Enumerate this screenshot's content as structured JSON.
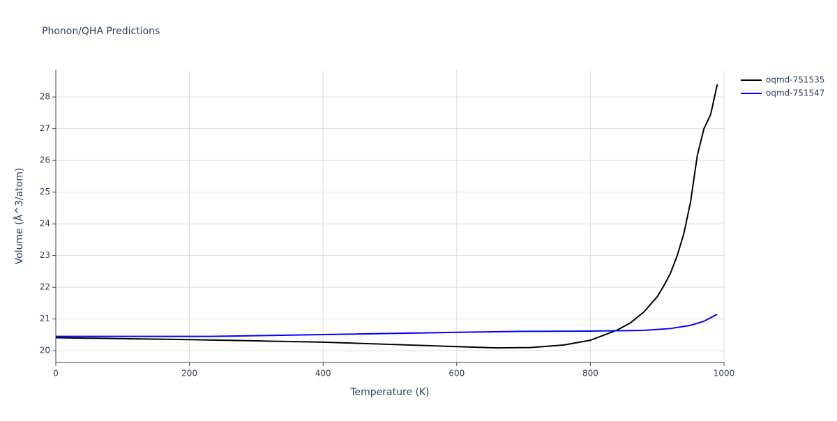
{
  "chart_data": {
    "type": "line",
    "title": "Phonon/QHA Predictions",
    "x_label": "Temperature (K)",
    "y_label": "Volume (Å^3/atom)",
    "series": [
      {
        "name": "oqmd-751535",
        "color": "#000000",
        "x": [
          0,
          100,
          200,
          300,
          400,
          500,
          600,
          660,
          710,
          760,
          800,
          840,
          860,
          880,
          900,
          910,
          920,
          930,
          940,
          950,
          960,
          970,
          980,
          990
        ],
        "values": [
          20.41,
          20.38,
          20.35,
          20.31,
          20.27,
          20.2,
          20.13,
          20.09,
          20.1,
          20.18,
          20.33,
          20.65,
          20.88,
          21.22,
          21.7,
          22.05,
          22.45,
          23.0,
          23.7,
          24.7,
          26.15,
          27.0,
          27.45,
          28.4
        ]
      },
      {
        "name": "oqmd-751547",
        "color": "#0000ff",
        "x": [
          0,
          230,
          400,
          600,
          700,
          800,
          880,
          920,
          950,
          970,
          990
        ],
        "values": [
          20.45,
          20.45,
          20.51,
          20.58,
          20.61,
          20.62,
          20.64,
          20.7,
          20.8,
          20.93,
          21.15
        ]
      }
    ],
    "xlim": [
      0,
      1000
    ],
    "xticks": [
      0,
      200,
      400,
      600,
      800,
      1000
    ],
    "ylim": [
      19.63,
      28.86
    ],
    "yticks": [
      20,
      21,
      22,
      23,
      24,
      25,
      26,
      27,
      28
    ],
    "grid": true,
    "legend": "right"
  }
}
